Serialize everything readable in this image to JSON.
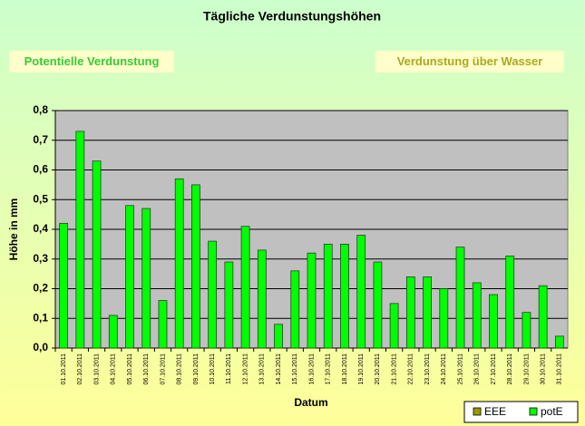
{
  "chart_data": {
    "type": "bar",
    "title": "Tägliche Verdunstungshöhen",
    "y_label": "Höhe in mm",
    "x_label": "Datum",
    "categories": [
      "01.10.2011",
      "02.10.2011",
      "03.10.2011",
      "04.10.2011",
      "05.10.2011",
      "06.10.2011",
      "07.10.2011",
      "08.10.2011",
      "09.10.2011",
      "10.10.2011",
      "11.10.2011",
      "12.10.2011",
      "13.10.2011",
      "14.10.2011",
      "15.10.2011",
      "16.10.2011",
      "17.10.2011",
      "18.10.2011",
      "19.10.2011",
      "20.10.2011",
      "21.10.2011",
      "22.10.2011",
      "23.10.2011",
      "24.10.2011",
      "25.10.2011",
      "26.10.2011",
      "27.10.2011",
      "28.10.2011",
      "29.10.2011",
      "30.10.2011",
      "31.10.2011"
    ],
    "series": [
      {
        "name": "EEE",
        "color": "#999900",
        "values": [
          null,
          null,
          null,
          null,
          null,
          null,
          null,
          null,
          null,
          null,
          null,
          null,
          null,
          null,
          null,
          null,
          null,
          null,
          null,
          null,
          null,
          null,
          null,
          null,
          null,
          null,
          null,
          null,
          null,
          null,
          null
        ]
      },
      {
        "name": "potE",
        "color": "#00ff00",
        "values": [
          0.42,
          0.73,
          0.63,
          0.11,
          0.48,
          0.47,
          0.16,
          0.57,
          0.55,
          0.36,
          0.29,
          0.41,
          0.33,
          0.08,
          0.26,
          0.32,
          0.35,
          0.35,
          0.38,
          0.29,
          0.15,
          0.24,
          0.24,
          0.2,
          0.34,
          0.22,
          0.18,
          0.31,
          0.12,
          0.21,
          0.04
        ]
      }
    ],
    "ylim": [
      0,
      0.8
    ],
    "yticks": [
      {
        "value": 0,
        "label": "0,0"
      },
      {
        "value": 0.1,
        "label": "0,1"
      },
      {
        "value": 0.2,
        "label": "0,2"
      },
      {
        "value": 0.3,
        "label": "0,3"
      },
      {
        "value": 0.4,
        "label": "0,4"
      },
      {
        "value": 0.5,
        "label": "0,5"
      },
      {
        "value": 0.6,
        "label": "0,6"
      },
      {
        "value": 0.7,
        "label": "0,7"
      },
      {
        "value": 0.8,
        "label": "0,8"
      }
    ],
    "grid": true,
    "legend": "bottom-right"
  },
  "buttons": [
    "Potentielle Verdunstung",
    "Verdunstung über Wasser"
  ]
}
